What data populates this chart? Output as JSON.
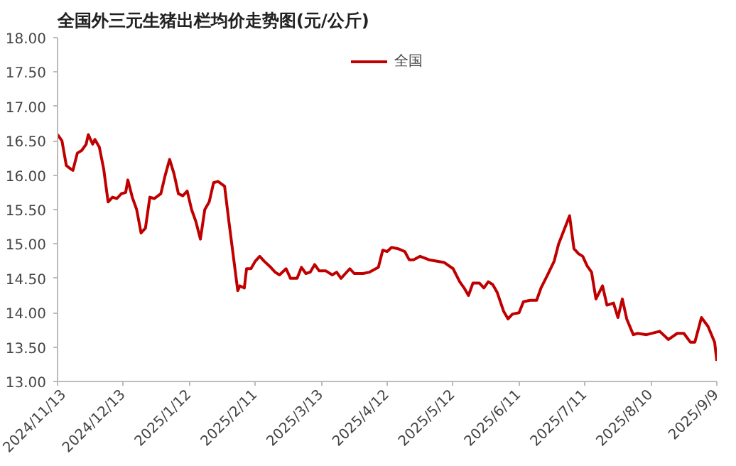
{
  "chart_data": {
    "type": "line",
    "title": "全国外三元生猪出栏均价走势图(元/公斤)",
    "legend": "top",
    "grid": false,
    "ylim": [
      13,
      18
    ],
    "yticks": [
      {
        "value": 13,
        "label": "13.00"
      },
      {
        "value": 13.5,
        "label": "13.50"
      },
      {
        "value": 14,
        "label": "14.00"
      },
      {
        "value": 14.5,
        "label": "14.50"
      },
      {
        "value": 15,
        "label": "15.00"
      },
      {
        "value": 15.5,
        "label": "15.50"
      },
      {
        "value": 16,
        "label": "16.00"
      },
      {
        "value": 16.5,
        "label": "16.50"
      },
      {
        "value": 17,
        "label": "17.00"
      },
      {
        "value": 17.5,
        "label": "17.50"
      },
      {
        "value": 18,
        "label": "18.00"
      }
    ],
    "xlim": [
      "2024-11-13",
      "2025-09-09"
    ],
    "xticks": [
      {
        "value": "2024-11-13",
        "label": "2024/11/13"
      },
      {
        "value": "2024-12-13",
        "label": "2024/12/13"
      },
      {
        "value": "2025-01-12",
        "label": "2025/1/12"
      },
      {
        "value": "2025-02-11",
        "label": "2025/2/11"
      },
      {
        "value": "2025-03-13",
        "label": "2025/3/13"
      },
      {
        "value": "2025-04-12",
        "label": "2025/4/12"
      },
      {
        "value": "2025-05-12",
        "label": "2025/5/12"
      },
      {
        "value": "2025-06-11",
        "label": "2025/6/11"
      },
      {
        "value": "2025-07-11",
        "label": "2025/7/11"
      },
      {
        "value": "2025-08-10",
        "label": "2025/8/10"
      },
      {
        "value": "2025-09-09",
        "label": "2025/9/9"
      }
    ],
    "x": [
      "2024-11-13",
      "2024-11-15",
      "2024-11-17",
      "2024-11-19",
      "2024-11-20",
      "2024-11-22",
      "2024-11-24",
      "2024-11-26",
      "2024-11-27",
      "2024-11-29",
      "2024-11-30",
      "2024-12-02",
      "2024-12-04",
      "2024-12-06",
      "2024-12-08",
      "2024-12-10",
      "2024-12-12",
      "2024-12-14",
      "2024-12-15",
      "2024-12-17",
      "2024-12-19",
      "2024-12-21",
      "2024-12-23",
      "2024-12-25",
      "2024-12-27",
      "2024-12-30",
      "2025-01-01",
      "2025-01-03",
      "2025-01-05",
      "2025-01-07",
      "2025-01-09",
      "2025-01-11",
      "2025-01-13",
      "2025-01-15",
      "2025-01-17",
      "2025-01-19",
      "2025-01-21",
      "2025-01-23",
      "2025-01-25",
      "2025-01-28",
      "2025-01-30",
      "2025-02-01",
      "2025-02-03",
      "2025-02-04",
      "2025-02-06",
      "2025-02-07",
      "2025-02-09",
      "2025-02-11",
      "2025-02-13",
      "2025-02-15",
      "2025-02-18",
      "2025-02-20",
      "2025-02-22",
      "2025-02-25",
      "2025-02-27",
      "2025-03-02",
      "2025-03-04",
      "2025-03-06",
      "2025-03-08",
      "2025-03-10",
      "2025-03-12",
      "2025-03-15",
      "2025-03-18",
      "2025-03-20",
      "2025-03-22",
      "2025-03-24",
      "2025-03-26",
      "2025-03-28",
      "2025-04-01",
      "2025-04-04",
      "2025-04-08",
      "2025-04-10",
      "2025-04-12",
      "2025-04-14",
      "2025-04-17",
      "2025-04-20",
      "2025-04-22",
      "2025-04-24",
      "2025-04-27",
      "2025-05-01",
      "2025-05-08",
      "2025-05-12",
      "2025-05-15",
      "2025-05-17",
      "2025-05-19",
      "2025-05-21",
      "2025-05-24",
      "2025-05-26",
      "2025-05-28",
      "2025-05-30",
      "2025-06-01",
      "2025-06-04",
      "2025-06-06",
      "2025-06-08",
      "2025-06-11",
      "2025-06-13",
      "2025-06-16",
      "2025-06-19",
      "2025-06-21",
      "2025-06-24",
      "2025-06-27",
      "2025-06-29",
      "2025-07-04",
      "2025-07-06",
      "2025-07-08",
      "2025-07-10",
      "2025-07-12",
      "2025-07-14",
      "2025-07-16",
      "2025-07-19",
      "2025-07-21",
      "2025-07-24",
      "2025-07-26",
      "2025-07-28",
      "2025-07-30",
      "2025-08-02",
      "2025-08-04",
      "2025-08-08",
      "2025-08-14",
      "2025-08-18",
      "2025-08-22",
      "2025-08-25",
      "2025-08-28",
      "2025-08-30",
      "2025-09-02",
      "2025-09-05",
      "2025-09-08",
      "2025-09-09"
    ],
    "series": [
      {
        "name": "全国",
        "color": "#c00000",
        "values": [
          16.59,
          16.5,
          16.14,
          16.09,
          16.07,
          16.32,
          16.36,
          16.45,
          16.59,
          16.45,
          16.52,
          16.41,
          16.09,
          15.61,
          15.68,
          15.66,
          15.73,
          15.75,
          15.93,
          15.68,
          15.5,
          15.16,
          15.23,
          15.68,
          15.66,
          15.73,
          16.0,
          16.23,
          16.02,
          15.73,
          15.7,
          15.77,
          15.5,
          15.32,
          15.07,
          15.5,
          15.61,
          15.89,
          15.91,
          15.84,
          15.32,
          14.82,
          14.32,
          14.39,
          14.36,
          14.64,
          14.64,
          14.75,
          14.82,
          14.75,
          14.66,
          14.59,
          14.55,
          14.64,
          14.5,
          14.5,
          14.66,
          14.57,
          14.59,
          14.7,
          14.61,
          14.61,
          14.55,
          14.59,
          14.5,
          14.57,
          14.64,
          14.57,
          14.57,
          14.59,
          14.66,
          14.91,
          14.89,
          14.95,
          14.93,
          14.89,
          14.77,
          14.77,
          14.82,
          14.77,
          14.73,
          14.64,
          14.45,
          14.36,
          14.25,
          14.43,
          14.43,
          14.36,
          14.45,
          14.41,
          14.3,
          14.02,
          13.91,
          13.98,
          14.0,
          14.16,
          14.18,
          14.18,
          14.36,
          14.55,
          14.75,
          15.0,
          15.41,
          14.93,
          14.86,
          14.82,
          14.68,
          14.59,
          14.2,
          14.39,
          14.11,
          14.14,
          13.93,
          14.2,
          13.91,
          13.68,
          13.7,
          13.68,
          13.73,
          13.61,
          13.7,
          13.7,
          13.57,
          13.57,
          13.93,
          13.8,
          13.57,
          13.3
        ]
      }
    ]
  }
}
